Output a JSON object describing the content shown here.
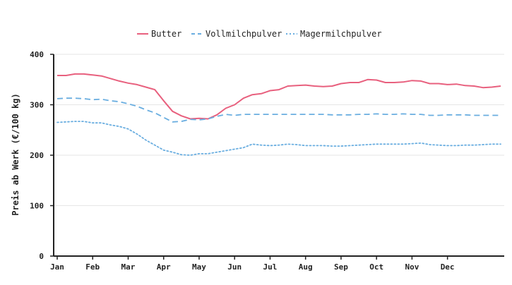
{
  "chart_data": {
    "type": "line",
    "title": "",
    "xlabel": "",
    "ylabel": "Preis ab Werk (€/100 kg)",
    "ylim": [
      0,
      400
    ],
    "xlim": [
      0,
      12.5
    ],
    "yticks": [
      0,
      100,
      200,
      300,
      400
    ],
    "xticks": [
      {
        "x": 0,
        "label": "Jan"
      },
      {
        "x": 1,
        "label": "Feb"
      },
      {
        "x": 2,
        "label": "Mar"
      },
      {
        "x": 3,
        "label": "Apr"
      },
      {
        "x": 4,
        "label": "May"
      },
      {
        "x": 5,
        "label": "Jun"
      },
      {
        "x": 6,
        "label": "Jul"
      },
      {
        "x": 7,
        "label": "Aug"
      },
      {
        "x": 8,
        "label": "Sep"
      },
      {
        "x": 9,
        "label": "Oct"
      },
      {
        "x": 10,
        "label": "Nov"
      },
      {
        "x": 11,
        "label": "Dec"
      }
    ],
    "grid": "horizontal",
    "legend_position": "top-center",
    "x": [
      0,
      0.25,
      0.5,
      0.75,
      1,
      1.25,
      1.5,
      1.75,
      2,
      2.25,
      2.5,
      2.75,
      3,
      3.25,
      3.5,
      3.75,
      4,
      4.25,
      4.5,
      4.75,
      5,
      5.25,
      5.5,
      5.75,
      6,
      6.25,
      6.5,
      6.75,
      7,
      7.25,
      7.5,
      7.75,
      8,
      8.25,
      8.5,
      8.75,
      9,
      9.25,
      9.5,
      9.75,
      10,
      10.25,
      10.5,
      10.75,
      11,
      11.25,
      11.5,
      11.75,
      12,
      12.25,
      12.5
    ],
    "series": [
      {
        "name": "Butter",
        "color": "#e8607e",
        "style": "solid",
        "values": [
          358,
          358,
          361,
          361,
          359,
          357,
          352,
          347,
          343,
          340,
          335,
          330,
          308,
          287,
          278,
          272,
          273,
          272,
          280,
          293,
          300,
          313,
          320,
          322,
          328,
          330,
          337,
          338,
          339,
          337,
          336,
          337,
          342,
          344,
          344,
          350,
          349,
          344,
          344,
          345,
          348,
          347,
          342,
          342,
          340,
          341,
          338,
          337,
          334,
          335,
          337
        ]
      },
      {
        "name": "Vollmilchpulver",
        "color": "#6aaee0",
        "style": "dashed",
        "values": [
          312,
          313,
          313,
          312,
          310,
          311,
          308,
          306,
          302,
          297,
          290,
          284,
          275,
          266,
          267,
          271,
          270,
          272,
          277,
          281,
          279,
          281,
          281,
          281,
          281,
          281,
          281,
          281,
          281,
          281,
          281,
          280,
          280,
          280,
          281,
          281,
          282,
          281,
          281,
          282,
          281,
          281,
          279,
          279,
          280,
          280,
          280,
          279,
          279,
          279,
          279
        ]
      },
      {
        "name": "Magermilchpulver",
        "color": "#6aaee0",
        "style": "dotted",
        "values": [
          265,
          266,
          267,
          267,
          264,
          264,
          260,
          257,
          252,
          242,
          230,
          220,
          210,
          206,
          201,
          200,
          203,
          203,
          206,
          209,
          212,
          215,
          222,
          220,
          219,
          220,
          222,
          221,
          219,
          219,
          219,
          218,
          218,
          219,
          220,
          221,
          222,
          222,
          222,
          222,
          223,
          224,
          221,
          220,
          219,
          219,
          220,
          220,
          221,
          222,
          222
        ]
      }
    ]
  }
}
